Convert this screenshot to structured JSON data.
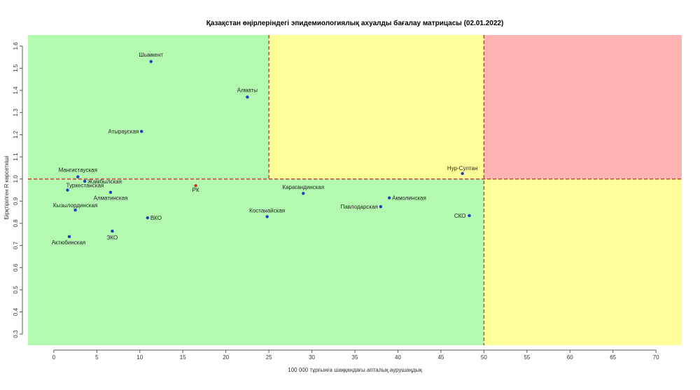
{
  "chart_data": {
    "type": "scatter",
    "title": "Қазақстан өңірлеріндегі эпидемиологиялық ахуалды бағалау матрицасы  (02.01.2022)",
    "xlabel": "100 000 тұрғынға шаққандағы апталық аурушаңдық",
    "ylabel": "Бірқтірілген R көрсеткіші",
    "xlim": [
      -3,
      73
    ],
    "ylim": [
      0.25,
      1.65
    ],
    "x_ticks": [
      0,
      5,
      10,
      15,
      20,
      25,
      30,
      35,
      40,
      45,
      50,
      55,
      60,
      65,
      70
    ],
    "y_ticks": [
      0.3,
      0.4,
      0.5,
      0.6,
      0.7,
      0.8,
      0.9,
      1.0,
      1.1,
      1.2,
      1.3,
      1.4,
      1.5,
      1.6
    ],
    "thresholds": {
      "x": [
        25,
        50
      ],
      "y": 1.0
    },
    "zone_colors": {
      "green": "#b3f9b0",
      "yellow": "#ffff99",
      "red": "#ffb3b3",
      "threshold_line": "#c0392b",
      "point": "#1f3fbf",
      "point_rk": "#c0392b"
    },
    "points": [
      {
        "label": "Шымкент",
        "x": 11.3,
        "y": 1.53
      },
      {
        "label": "Алматы",
        "x": 22.5,
        "y": 1.37
      },
      {
        "label": "Атырауская",
        "x": 10.2,
        "y": 1.215
      },
      {
        "label": "Мангистауская",
        "x": 2.8,
        "y": 1.01
      },
      {
        "label": "Жамбылская",
        "x": 3.6,
        "y": 0.99
      },
      {
        "label": "Туркестанская",
        "x": 1.6,
        "y": 0.95
      },
      {
        "label": "Алматинская",
        "x": 6.6,
        "y": 0.94
      },
      {
        "label": "РК",
        "x": 16.5,
        "y": 0.97
      },
      {
        "label": "Кызылординская",
        "x": 2.5,
        "y": 0.86
      },
      {
        "label": "ВКО",
        "x": 10.9,
        "y": 0.825
      },
      {
        "label": "ЗКО",
        "x": 6.8,
        "y": 0.765
      },
      {
        "label": "Актюбинская",
        "x": 1.8,
        "y": 0.74
      },
      {
        "label": "Карагандинская",
        "x": 29.0,
        "y": 0.935
      },
      {
        "label": "Костанайская",
        "x": 24.8,
        "y": 0.83
      },
      {
        "label": "Акмолинская",
        "x": 39.0,
        "y": 0.915
      },
      {
        "label": "Павлодарская",
        "x": 38.0,
        "y": 0.875
      },
      {
        "label": "Нур-Султан",
        "x": 47.5,
        "y": 1.025
      },
      {
        "label": "СКО",
        "x": 48.3,
        "y": 0.835
      }
    ]
  }
}
